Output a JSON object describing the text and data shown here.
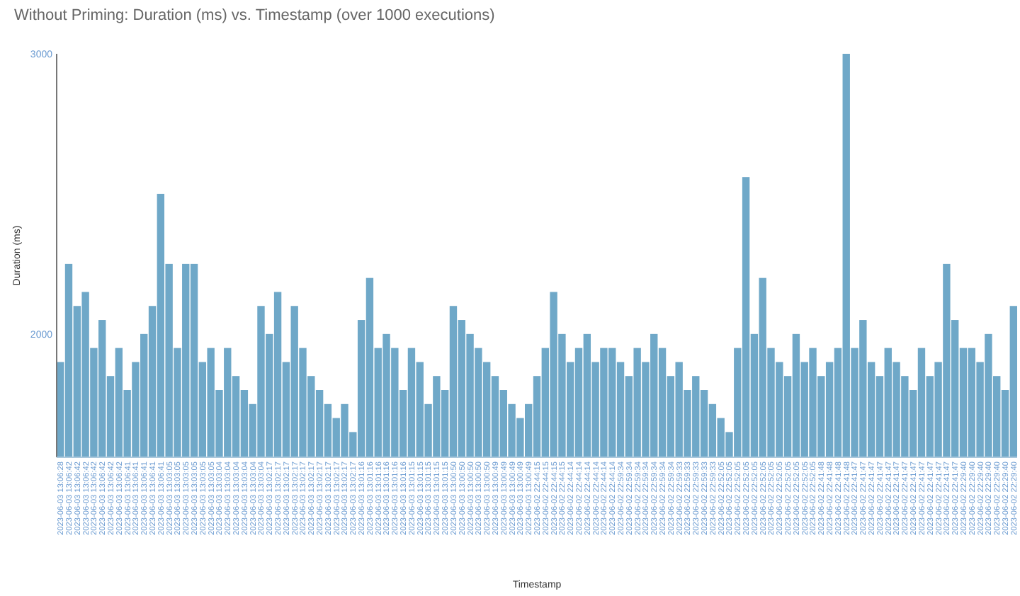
{
  "chart_data": {
    "type": "bar",
    "title": "Without Priming: Duration (ms) vs. Timestamp (over 1000 executions)",
    "xlabel": "Timestamp",
    "ylabel": "Duration (ms)",
    "categories": [
      "2023-06-03 13:06:28",
      "2023-06-03 13:06:42",
      "2023-06-03 13:06:42",
      "2023-06-03 13:06:42",
      "2023-06-03 13:06:42",
      "2023-06-03 13:06:42",
      "2023-06-03 13:06:42",
      "2023-06-03 13:06:42",
      "2023-06-03 13:06:41",
      "2023-06-03 13:06:41",
      "2023-06-03 13:06:41",
      "2023-06-03 13:06:41",
      "2023-06-03 13:06:41",
      "2023-06-03 13:03:05",
      "2023-06-03 13:03:05",
      "2023-06-03 13:03:05",
      "2023-06-03 13:03:05",
      "2023-06-03 13:03:05",
      "2023-06-03 13:03:05",
      "2023-06-03 13:03:04",
      "2023-06-03 13:03:04",
      "2023-06-03 13:03:04",
      "2023-06-03 13:03:04",
      "2023-06-03 13:03:04",
      "2023-06-03 13:03:04",
      "2023-06-03 13:02:17",
      "2023-06-03 13:02:17",
      "2023-06-03 13:02:17",
      "2023-06-03 13:02:17",
      "2023-06-03 13:02:17",
      "2023-06-03 13:02:17",
      "2023-06-03 13:02:17",
      "2023-06-03 13:02:17",
      "2023-06-03 13:02:17",
      "2023-06-03 13:02:17",
      "2023-06-03 13:02:17",
      "2023-06-03 13:01:16",
      "2023-06-03 13:01:16",
      "2023-06-03 13:01:16",
      "2023-06-03 13:01:16",
      "2023-06-03 13:01:16",
      "2023-06-03 13:01:16",
      "2023-06-03 13:01:15",
      "2023-06-03 13:01:15",
      "2023-06-03 13:01:15",
      "2023-06-03 13:01:15",
      "2023-06-03 13:01:15",
      "2023-06-03 13:00:50",
      "2023-06-03 13:00:50",
      "2023-06-03 13:00:50",
      "2023-06-03 13:00:50",
      "2023-06-03 13:00:50",
      "2023-06-03 13:00:49",
      "2023-06-03 13:00:49",
      "2023-06-03 13:00:49",
      "2023-06-03 13:00:49",
      "2023-06-03 13:00:49",
      "2023-06-02 22:44:15",
      "2023-06-02 22:44:15",
      "2023-06-02 22:44:15",
      "2023-06-02 22:44:15",
      "2023-06-02 22:44:14",
      "2023-06-02 22:44:14",
      "2023-06-02 22:44:14",
      "2023-06-02 22:44:14",
      "2023-06-02 22:44:14",
      "2023-06-02 22:44:14",
      "2023-06-02 22:59:34",
      "2023-06-02 22:59:34",
      "2023-06-02 22:59:34",
      "2023-06-02 22:59:34",
      "2023-06-02 22:59:34",
      "2023-06-02 22:59:34",
      "2023-06-02 22:59:34",
      "2023-06-02 22:59:33",
      "2023-06-02 22:59:33",
      "2023-06-02 22:59:33",
      "2023-06-02 22:59:33",
      "2023-06-02 22:59:33",
      "2023-06-02 22:52:05",
      "2023-06-02 22:52:05",
      "2023-06-02 22:52:05",
      "2023-06-02 22:52:05",
      "2023-06-02 22:52:05",
      "2023-06-02 22:52:05",
      "2023-06-02 22:52:05",
      "2023-06-02 22:52:05",
      "2023-06-02 22:52:05",
      "2023-06-02 22:52:05",
      "2023-06-02 22:52:05",
      "2023-06-02 22:52:05",
      "2023-06-02 22:41:48",
      "2023-06-02 22:41:48",
      "2023-06-02 22:41:48",
      "2023-06-02 22:41:48",
      "2023-06-02 22:41:47",
      "2023-06-02 22:41:47",
      "2023-06-02 22:41:47",
      "2023-06-02 22:41:47",
      "2023-06-02 22:41:47",
      "2023-06-02 22:41:47",
      "2023-06-02 22:41:47",
      "2023-06-02 22:41:47",
      "2023-06-02 22:41:47",
      "2023-06-02 22:41:47",
      "2023-06-02 22:41:47",
      "2023-06-02 22:41:47",
      "2023-06-02 22:41:47",
      "2023-06-02 22:29:40",
      "2023-06-02 22:29:40",
      "2023-06-02 22:29:40",
      "2023-06-02 22:29:40",
      "2023-06-02 22:29:40",
      "2023-06-02 22:29:40",
      "2023-06-02 22:29:40"
    ],
    "values": [
      1900,
      2250,
      2100,
      2150,
      1950,
      2050,
      1850,
      1950,
      1800,
      1900,
      2000,
      2100,
      2500,
      2250,
      1950,
      2250,
      2250,
      1900,
      1950,
      1800,
      1950,
      1850,
      1800,
      1750,
      2100,
      2000,
      2150,
      1900,
      2100,
      1950,
      1850,
      1800,
      1750,
      1700,
      1750,
      1650,
      2050,
      2200,
      1950,
      2000,
      1950,
      1800,
      1950,
      1900,
      1750,
      1850,
      1800,
      2100,
      2050,
      2000,
      1950,
      1900,
      1850,
      1800,
      1750,
      1700,
      1750,
      1850,
      1950,
      2150,
      2000,
      1900,
      1950,
      2000,
      1900,
      1950,
      1950,
      1900,
      1850,
      1950,
      1900,
      2000,
      1950,
      1850,
      1900,
      1800,
      1850,
      1800,
      1750,
      1700,
      1650,
      1950,
      2560,
      2000,
      2200,
      1950,
      1900,
      1850,
      2000,
      1900,
      1950,
      1850,
      1900,
      1950,
      3000,
      1950,
      2050,
      1900,
      1850,
      1950,
      1900,
      1850,
      1800,
      1950,
      1850,
      1900,
      2250,
      2050,
      1950,
      1950,
      1900,
      2000,
      1850,
      1800,
      2100
    ],
    "color": "#6fa8c8",
    "ylim": [
      1560,
      3000
    ],
    "yticks": [
      2000,
      3000
    ]
  }
}
